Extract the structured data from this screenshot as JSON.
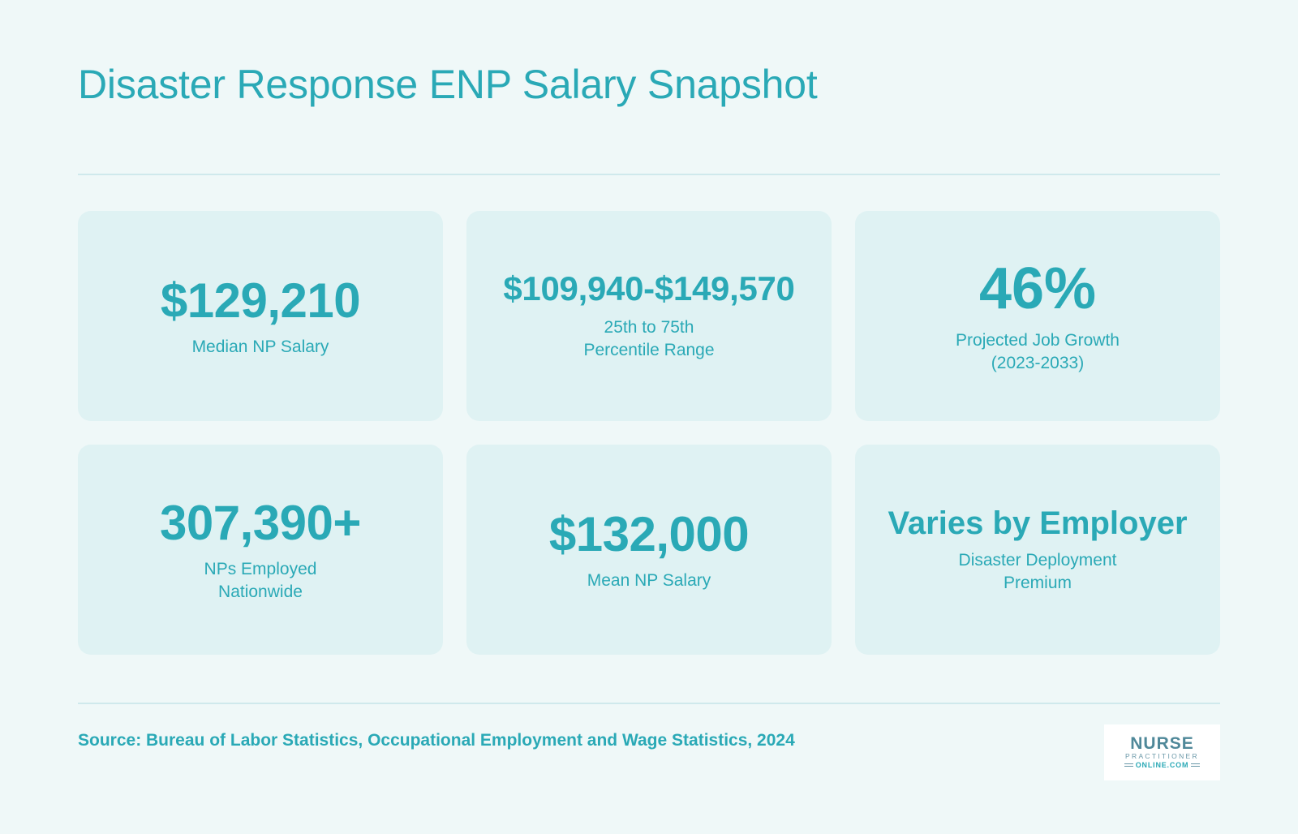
{
  "header": {
    "title": "Disaster Response ENP Salary Snapshot"
  },
  "stats": [
    {
      "value": "$129,210",
      "label": "Median NP Salary"
    },
    {
      "value": "$109,940-$149,570",
      "label": "25th to 75th\nPercentile Range"
    },
    {
      "value": "46%",
      "label": "Projected Job Growth\n(2023-2033)"
    },
    {
      "value": "307,390+",
      "label": "NPs Employed\nNationwide"
    },
    {
      "value": "$132,000",
      "label": "Mean NP Salary"
    },
    {
      "value": "Varies by Employer",
      "label": "Disaster Deployment\nPremium"
    }
  ],
  "footer": {
    "source": "Source: Bureau of Labor Statistics, Occupational Employment and Wage Statistics, 2024",
    "logo": {
      "top": "NURSE",
      "middle": "PRACTITIONER",
      "bottom": "ONLINE.COM"
    }
  },
  "colors": {
    "background": "#eff8f8",
    "card": "#dff2f3",
    "accent": "#2aa9b6",
    "divider": "#cfe9ec"
  }
}
